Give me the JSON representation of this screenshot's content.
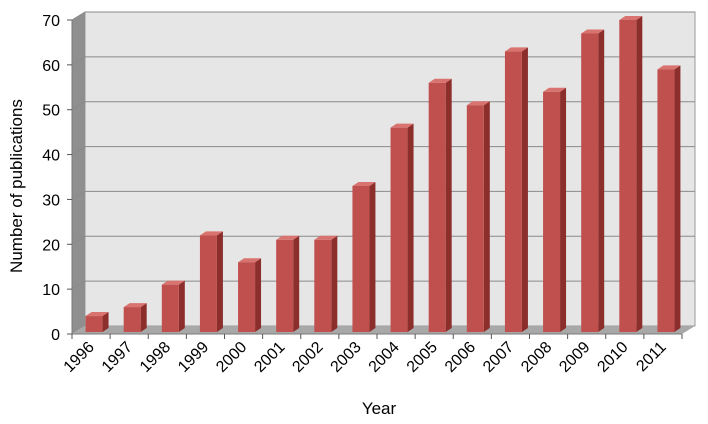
{
  "chart_data": {
    "type": "bar",
    "title": "",
    "xlabel": "Year",
    "ylabel": "Number of publications",
    "categories": [
      "1996",
      "1997",
      "1998",
      "1999",
      "2000",
      "2001",
      "2002",
      "2003",
      "2004",
      "2005",
      "2006",
      "2007",
      "2008",
      "2009",
      "2010",
      "2011"
    ],
    "values": [
      4,
      6,
      11,
      22,
      16,
      21,
      21,
      33,
      46,
      56,
      51,
      63,
      54,
      67,
      70,
      59
    ],
    "ylim": [
      0,
      70
    ],
    "yticks": [
      0,
      10,
      20,
      30,
      40,
      50,
      60,
      70
    ],
    "grid": true,
    "three_d": true,
    "colors": {
      "bar_front": "#c0504d",
      "bar_side": "#8c2f2c",
      "bar_top": "#d9736f",
      "plot_back": "#e6e6e6",
      "plot_side_wall": "#8f8f8f",
      "plot_floor": "#a8a8a8",
      "gridline": "#8a8a8a"
    }
  }
}
